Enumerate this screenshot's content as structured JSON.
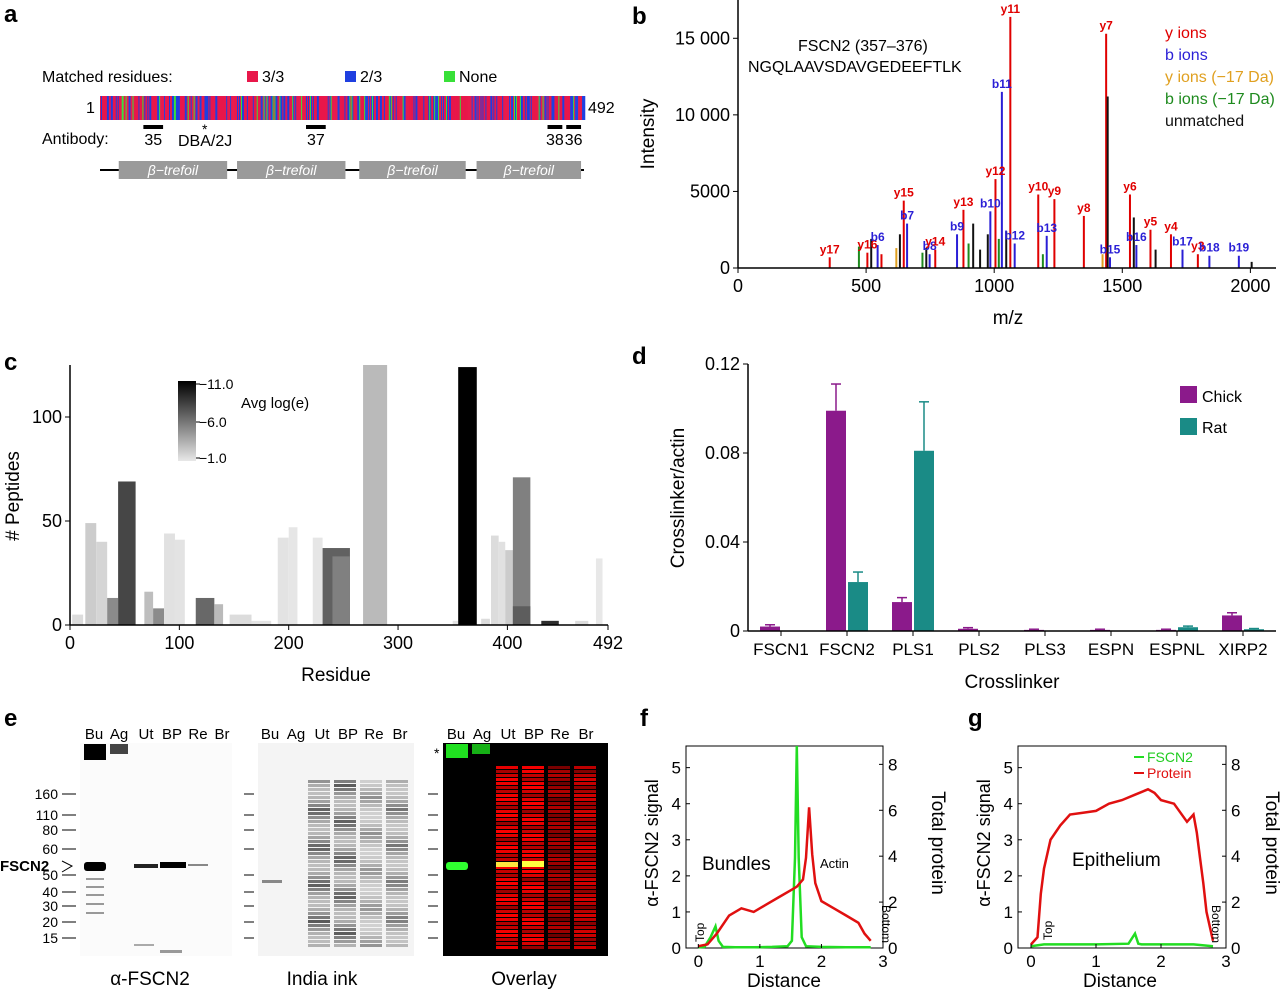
{
  "panel_letters": [
    "a",
    "b",
    "c",
    "d",
    "e",
    "f",
    "g"
  ],
  "colors": {
    "three_of_three": "#e8174a",
    "two_of_three": "#1f3fe0",
    "none": "#38e038",
    "y_ions": "#e00000",
    "b_ions": "#2a1fd6",
    "y_ions_17": "#e0a020",
    "b_ions_17": "#1e8a1e",
    "unmatched": "#111111",
    "chick": "#8b1a8b",
    "rat": "#1a8b86",
    "fscn2_trace": "#22dd22",
    "protein_trace": "#e01010",
    "domain_box": "#9a9a9a"
  },
  "panel_a": {
    "legend_title": "Matched residues:",
    "legend": [
      {
        "label": "3/3",
        "color": "#e8174a"
      },
      {
        "label": "2/3",
        "color": "#1f3fe0"
      },
      {
        "label": "None",
        "color": "#38e038"
      }
    ],
    "start_label": "1",
    "end_label": "492",
    "antibody_label": "Antibody:",
    "antibody_sites": [
      {
        "label": "35",
        "start": 45,
        "end": 65
      },
      {
        "label": "37",
        "start": 210,
        "end": 230
      },
      {
        "label": "38",
        "start": 455,
        "end": 470
      },
      {
        "label": "36",
        "start": 474,
        "end": 489
      }
    ],
    "mutation_label": "DBA/2J",
    "mutation_mark": "*",
    "mutation_residue": 112,
    "domains": [
      {
        "label": "β−trefoil",
        "start": 20,
        "end": 130
      },
      {
        "label": "β−trefoil",
        "start": 140,
        "end": 250
      },
      {
        "label": "β−trefoil",
        "start": 264,
        "end": 372
      },
      {
        "label": "β−trefoil",
        "start": 383,
        "end": 489
      }
    ]
  },
  "panel_b": {
    "peptide_name": "FSCN2 (357–376)",
    "peptide_seq": "NGQLAAVSDAVGEDEEFTLK",
    "legend": [
      {
        "label": "y ions",
        "color": "#e00000"
      },
      {
        "label": "b ions",
        "color": "#2a1fd6"
      },
      {
        "label": "y ions (−17 Da)",
        "color": "#e0a020"
      },
      {
        "label": "b ions (−17 Da)",
        "color": "#1e8a1e"
      },
      {
        "label": "unmatched",
        "color": "#111111"
      }
    ]
  },
  "panel_c": {
    "colorbar_title": "Avg log(e)",
    "colorbar_ticks": [
      "−11.0",
      "−6.0",
      "−1.0"
    ]
  },
  "panel_d": {
    "legend": [
      {
        "label": "Chick",
        "color": "#8b1a8b"
      },
      {
        "label": "Rat",
        "color": "#1a8b86"
      }
    ]
  },
  "panel_e": {
    "lanes": [
      "Bu",
      "Ag",
      "Ut",
      "BP",
      "Re",
      "Br"
    ],
    "markers": [
      "160",
      "110",
      "80",
      "60",
      "50",
      "40",
      "30",
      "20",
      "15"
    ],
    "band_label": "FSCN2",
    "blot_titles": [
      "α-FSCN2",
      "India ink",
      "Overlay"
    ],
    "asterisk": "*"
  },
  "panel_f": {
    "annotations": [
      "Bundles",
      "Actin",
      "Top",
      "Bottom"
    ]
  },
  "panel_g": {
    "annotations": [
      "Epithelium",
      "Top",
      "Bottom"
    ],
    "legend": [
      "FSCN2",
      "Protein"
    ]
  },
  "chart_data": [
    {
      "panel": "b",
      "type": "bar",
      "xlabel": "m/z",
      "ylabel": "Intensity",
      "xlim": [
        0,
        2100
      ],
      "ylim": [
        0,
        17500
      ],
      "xticks": [
        "0",
        "500",
        "1000",
        "1500",
        "2000"
      ],
      "yticks": [
        "0",
        "5000",
        "10 000",
        "15 000"
      ],
      "peaks": [
        {
          "mz": 358,
          "i": 700,
          "kind": "y",
          "label": "y17"
        },
        {
          "mz": 472,
          "i": 1400,
          "kind": "b17"
        },
        {
          "mz": 505,
          "i": 1000,
          "kind": "y",
          "label": "y16"
        },
        {
          "mz": 520,
          "i": 1900,
          "kind": "u"
        },
        {
          "mz": 545,
          "i": 1500,
          "kind": "b",
          "label": "b6"
        },
        {
          "mz": 560,
          "i": 900,
          "kind": "y"
        },
        {
          "mz": 618,
          "i": 1300,
          "kind": "y17"
        },
        {
          "mz": 632,
          "i": 2200,
          "kind": "u"
        },
        {
          "mz": 647,
          "i": 4400,
          "kind": "y",
          "label": "y15"
        },
        {
          "mz": 660,
          "i": 2900,
          "kind": "b",
          "label": "b7"
        },
        {
          "mz": 720,
          "i": 1000,
          "kind": "b17"
        },
        {
          "mz": 735,
          "i": 1300,
          "kind": "u"
        },
        {
          "mz": 748,
          "i": 900,
          "kind": "b",
          "label": "b8"
        },
        {
          "mz": 770,
          "i": 1200,
          "kind": "y",
          "label": "y14"
        },
        {
          "mz": 855,
          "i": 2200,
          "kind": "b",
          "label": "b9"
        },
        {
          "mz": 880,
          "i": 3800,
          "kind": "y",
          "label": "y13"
        },
        {
          "mz": 900,
          "i": 1600,
          "kind": "b17"
        },
        {
          "mz": 918,
          "i": 2900,
          "kind": "u"
        },
        {
          "mz": 945,
          "i": 1200,
          "kind": "u"
        },
        {
          "mz": 975,
          "i": 2200,
          "kind": "u"
        },
        {
          "mz": 985,
          "i": 3700,
          "kind": "b",
          "label": "b10"
        },
        {
          "mz": 1005,
          "i": 5800,
          "kind": "y",
          "label": "y12"
        },
        {
          "mz": 1018,
          "i": 1900,
          "kind": "b17"
        },
        {
          "mz": 1030,
          "i": 11500,
          "kind": "b",
          "label": "b11"
        },
        {
          "mz": 1047,
          "i": 2400,
          "kind": "u"
        },
        {
          "mz": 1063,
          "i": 16400,
          "kind": "y",
          "label": "y11"
        },
        {
          "mz": 1080,
          "i": 1600,
          "kind": "b",
          "label": "b12"
        },
        {
          "mz": 1172,
          "i": 4800,
          "kind": "y",
          "label": "y10"
        },
        {
          "mz": 1190,
          "i": 900,
          "kind": "b17"
        },
        {
          "mz": 1205,
          "i": 2100,
          "kind": "b",
          "label": "b13"
        },
        {
          "mz": 1235,
          "i": 4500,
          "kind": "y",
          "label": "y9"
        },
        {
          "mz": 1350,
          "i": 3400,
          "kind": "y",
          "label": "y8"
        },
        {
          "mz": 1423,
          "i": 900,
          "kind": "y17"
        },
        {
          "mz": 1437,
          "i": 15300,
          "kind": "y",
          "label": "y7"
        },
        {
          "mz": 1443,
          "i": 11200,
          "kind": "u"
        },
        {
          "mz": 1452,
          "i": 700,
          "kind": "b",
          "label": "b15"
        },
        {
          "mz": 1530,
          "i": 4800,
          "kind": "y",
          "label": "y6"
        },
        {
          "mz": 1545,
          "i": 3300,
          "kind": "u"
        },
        {
          "mz": 1555,
          "i": 1500,
          "kind": "b",
          "label": "b16"
        },
        {
          "mz": 1610,
          "i": 2500,
          "kind": "y",
          "label": "y5"
        },
        {
          "mz": 1630,
          "i": 1200,
          "kind": "u"
        },
        {
          "mz": 1690,
          "i": 2200,
          "kind": "y",
          "label": "y4"
        },
        {
          "mz": 1735,
          "i": 1200,
          "kind": "b",
          "label": "b17"
        },
        {
          "mz": 1795,
          "i": 900,
          "kind": "y",
          "label": "y3"
        },
        {
          "mz": 1840,
          "i": 800,
          "kind": "b",
          "label": "b18"
        },
        {
          "mz": 1955,
          "i": 800,
          "kind": "b",
          "label": "b19"
        },
        {
          "mz": 2005,
          "i": 400,
          "kind": "u"
        }
      ]
    },
    {
      "panel": "c",
      "type": "bar",
      "xlabel": "Residue",
      "ylabel": "# Peptides",
      "xlim": [
        0,
        492
      ],
      "ylim": [
        0,
        125
      ],
      "xticks": [
        "0",
        "100",
        "200",
        "300",
        "400",
        "492"
      ],
      "yticks": [
        "0",
        "50",
        "100"
      ],
      "bars": [
        {
          "x0": 2,
          "x1": 12,
          "v": 5,
          "e": -1.5
        },
        {
          "x0": 14,
          "x1": 24,
          "v": 49,
          "e": -2.2
        },
        {
          "x0": 24,
          "x1": 34,
          "v": 40,
          "e": -1.8
        },
        {
          "x0": 34,
          "x1": 44,
          "v": 13,
          "e": -5.0
        },
        {
          "x0": 44,
          "x1": 60,
          "v": 69,
          "e": -8.0
        },
        {
          "x0": 68,
          "x1": 76,
          "v": 16,
          "e": -2.8
        },
        {
          "x0": 76,
          "x1": 86,
          "v": 8,
          "e": -5.0
        },
        {
          "x0": 86,
          "x1": 96,
          "v": 44,
          "e": -1.3
        },
        {
          "x0": 96,
          "x1": 105,
          "v": 41,
          "e": -1.2
        },
        {
          "x0": 115,
          "x1": 132,
          "v": 13,
          "e": -6.5
        },
        {
          "x0": 132,
          "x1": 140,
          "v": 10,
          "e": -3.0
        },
        {
          "x0": 146,
          "x1": 166,
          "v": 5,
          "e": -1.5
        },
        {
          "x0": 166,
          "x1": 184,
          "v": 2,
          "e": -1.2
        },
        {
          "x0": 190,
          "x1": 200,
          "v": 42,
          "e": -1.2
        },
        {
          "x0": 200,
          "x1": 208,
          "v": 47,
          "e": -1.1
        },
        {
          "x0": 222,
          "x1": 231,
          "v": 42,
          "e": -1.1
        },
        {
          "x0": 231,
          "x1": 256,
          "v": 37,
          "e": -6.8
        },
        {
          "x0": 240,
          "x1": 256,
          "v": 33,
          "e": -5.5
        },
        {
          "x0": 268,
          "x1": 290,
          "v": 125,
          "e": -3.0
        },
        {
          "x0": 350,
          "x1": 355,
          "v": 2,
          "e": -1.2
        },
        {
          "x0": 355,
          "x1": 372,
          "v": 124,
          "e": -11.0
        },
        {
          "x0": 376,
          "x1": 384,
          "v": 3,
          "e": -1.5
        },
        {
          "x0": 385,
          "x1": 392,
          "v": 43,
          "e": -1.5
        },
        {
          "x0": 392,
          "x1": 398,
          "v": 40,
          "e": -1.3
        },
        {
          "x0": 398,
          "x1": 406,
          "v": 36,
          "e": -2.2
        },
        {
          "x0": 405,
          "x1": 421,
          "v": 71,
          "e": -5.5
        },
        {
          "x0": 405,
          "x1": 421,
          "v": 9,
          "e": -7.0
        },
        {
          "x0": 431,
          "x1": 447,
          "v": 2,
          "e": -9.0
        },
        {
          "x0": 462,
          "x1": 474,
          "v": 2,
          "e": -1.5
        },
        {
          "x0": 481,
          "x1": 487,
          "v": 32,
          "e": -1.0
        }
      ]
    },
    {
      "panel": "d",
      "type": "bar",
      "xlabel": "Crosslinker",
      "ylabel": "Crosslinker/actin",
      "ylim": [
        0,
        0.12
      ],
      "yticks": [
        "0",
        "0.04",
        "0.08",
        "0.12"
      ],
      "categories": [
        "FSCN1",
        "FSCN2",
        "PLS1",
        "PLS2",
        "PLS3",
        "ESPN",
        "ESPNL",
        "XIRP2"
      ],
      "series": [
        {
          "name": "Chick",
          "values": [
            0.002,
            0.099,
            0.013,
            0.001,
            0.0005,
            0.0005,
            0.0005,
            0.007
          ],
          "errors": [
            0.0008,
            0.012,
            0.002,
            0.0005,
            0.0003,
            0.0003,
            0.0003,
            0.0012
          ]
        },
        {
          "name": "Rat",
          "values": [
            0,
            0.022,
            0.081,
            0,
            0,
            0,
            0.0017,
            0.0008
          ],
          "errors": [
            0,
            0.0045,
            0.022,
            0,
            0,
            0,
            0.0005,
            0.0003
          ]
        }
      ]
    },
    {
      "panel": "f",
      "type": "line",
      "xlabel": "Distance",
      "ylabel": "α-FSCN2 signal",
      "y2label": "Total protein",
      "xlim": [
        -0.2,
        3.0
      ],
      "ylim": [
        0,
        5.6
      ],
      "y2lim": [
        0,
        8.8
      ],
      "xticks": [
        "0",
        "1",
        "2",
        "3"
      ],
      "yticks": [
        "0",
        "1",
        "2",
        "3",
        "4",
        "5"
      ],
      "y2ticks": [
        "0",
        "2",
        "4",
        "6",
        "8"
      ],
      "series": [
        {
          "name": "FSCN2",
          "x": [
            0,
            0.1,
            0.2,
            0.28,
            0.33,
            0.4,
            0.6,
            0.9,
            1.2,
            1.45,
            1.52,
            1.57,
            1.6,
            1.63,
            1.68,
            1.75,
            2.0,
            2.4,
            2.8
          ],
          "y": [
            0.02,
            0.03,
            0.3,
            0.6,
            0.2,
            0.03,
            0.02,
            0.02,
            0.03,
            0.05,
            0.2,
            2.5,
            5.6,
            2.5,
            0.3,
            0.05,
            0.03,
            0.02,
            0.02
          ]
        },
        {
          "name": "Protein",
          "x": [
            0,
            0.15,
            0.3,
            0.5,
            0.7,
            0.9,
            1.1,
            1.3,
            1.5,
            1.6,
            1.7,
            1.75,
            1.8,
            1.85,
            1.9,
            2.0,
            2.2,
            2.4,
            2.6,
            2.7,
            2.75,
            2.8
          ],
          "y": [
            0.05,
            0.1,
            0.4,
            0.9,
            1.1,
            1.0,
            1.2,
            1.4,
            1.6,
            1.7,
            1.9,
            2.5,
            3.9,
            2.6,
            1.8,
            1.3,
            1.1,
            0.9,
            0.7,
            0.4,
            0.3,
            0.2
          ]
        }
      ]
    },
    {
      "panel": "g",
      "type": "line",
      "xlabel": "Distance",
      "ylabel": "α-FSCN2 signal",
      "y2label": "Total protein",
      "xlim": [
        -0.2,
        3.0
      ],
      "ylim": [
        0,
        5.6
      ],
      "y2lim": [
        0,
        8.8
      ],
      "xticks": [
        "0",
        "1",
        "2",
        "3"
      ],
      "yticks": [
        "0",
        "1",
        "2",
        "3",
        "4",
        "5"
      ],
      "y2ticks": [
        "0",
        "2",
        "4",
        "6",
        "8"
      ],
      "series": [
        {
          "name": "FSCN2",
          "x": [
            0,
            0.2,
            0.5,
            1.0,
            1.5,
            1.6,
            1.65,
            1.7,
            2.0,
            2.5,
            2.8
          ],
          "y": [
            0.05,
            0.1,
            0.1,
            0.1,
            0.12,
            0.4,
            0.12,
            0.1,
            0.1,
            0.1,
            0.05
          ]
        },
        {
          "name": "Protein",
          "x": [
            0,
            0.1,
            0.15,
            0.2,
            0.3,
            0.45,
            0.6,
            0.8,
            1.0,
            1.2,
            1.4,
            1.6,
            1.8,
            1.9,
            2.0,
            2.2,
            2.4,
            2.5,
            2.55,
            2.6,
            2.65,
            2.7,
            2.8
          ],
          "y": [
            0.1,
            0.3,
            1.5,
            2.2,
            3.0,
            3.4,
            3.7,
            3.75,
            3.8,
            4.0,
            4.1,
            4.25,
            4.4,
            4.3,
            4.1,
            4.0,
            3.5,
            3.7,
            3.2,
            2.5,
            1.8,
            1.0,
            0.2
          ]
        }
      ]
    }
  ]
}
